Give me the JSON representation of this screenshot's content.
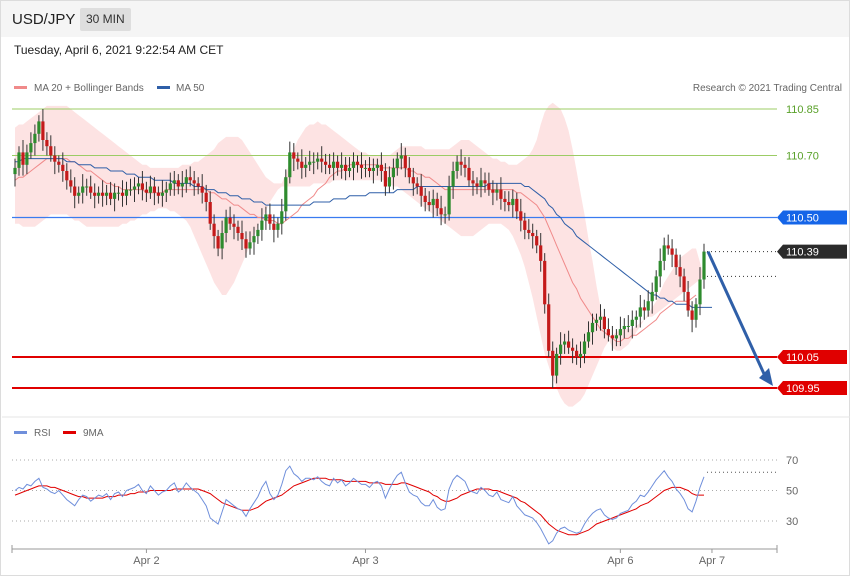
{
  "header": {
    "symbol": "USD/JPY",
    "timeframe": "30 MIN"
  },
  "datetime": "Tuesday, April 6, 2021 9:22:54 AM CET",
  "colors": {
    "ma20": "#f08a8a",
    "ma50": "#2f5fa8",
    "bands": "#fde0e0",
    "candle_up": "#2e8b2e",
    "candle_down": "#c41a1a",
    "support": "#e00000",
    "resistance_minor": "#9ccc65",
    "pivot": "#3a7bf0",
    "arrow": "#2f5fa8",
    "rsi": "#6f8fdb",
    "rsi_ma": "#e00000"
  },
  "legend": {
    "ma20": "MA 20 + Bollinger Bands",
    "ma50": "MA 50",
    "credit": "Research © 2021 Trading Central"
  },
  "levels": [
    {
      "value": 110.85,
      "label": "110.85",
      "kind": "resistance-minor"
    },
    {
      "value": 110.7,
      "label": "110.70",
      "kind": "resistance-minor"
    },
    {
      "value": 110.5,
      "label": "110.50",
      "kind": "pivot"
    },
    {
      "value": 110.39,
      "label": "110.39",
      "kind": "last"
    },
    {
      "value": 110.05,
      "label": "110.05",
      "kind": "support"
    },
    {
      "value": 109.95,
      "label": "109.95",
      "kind": "support"
    }
  ],
  "rsi_legend": {
    "rsi": "RSI",
    "ma": "9MA"
  },
  "rsi_levels": [
    {
      "value": 70,
      "label": "70"
    },
    {
      "value": 50,
      "label": "50"
    },
    {
      "value": 30,
      "label": "30"
    }
  ],
  "x_labels": [
    {
      "label": "Apr 2",
      "bar": 33
    },
    {
      "label": "Apr 3",
      "bar": 88
    },
    {
      "label": "Apr 6",
      "bar": 152
    },
    {
      "label": "Apr 7",
      "bar": 175
    }
  ],
  "chart_data": {
    "type": "candlestick",
    "ylim": [
      109.87,
      110.88
    ],
    "rsi_ylim": [
      10,
      80
    ],
    "close": [
      110.66,
      110.71,
      110.67,
      110.71,
      110.74,
      110.77,
      110.81,
      110.75,
      110.73,
      110.7,
      110.68,
      110.67,
      110.65,
      110.62,
      110.6,
      110.57,
      110.58,
      110.6,
      110.6,
      110.58,
      110.57,
      110.58,
      110.57,
      110.58,
      110.56,
      110.58,
      110.58,
      110.57,
      110.59,
      110.59,
      110.6,
      110.61,
      110.59,
      110.58,
      110.6,
      110.58,
      110.57,
      110.58,
      110.59,
      110.61,
      110.62,
      110.6,
      110.61,
      110.63,
      110.62,
      110.61,
      110.6,
      110.58,
      110.55,
      110.48,
      110.44,
      110.4,
      110.45,
      110.5,
      110.48,
      110.47,
      110.45,
      110.43,
      110.4,
      110.42,
      110.44,
      110.46,
      110.49,
      110.51,
      110.48,
      110.46,
      110.48,
      110.52,
      110.63,
      110.71,
      110.69,
      110.68,
      110.66,
      110.67,
      110.68,
      110.68,
      110.69,
      110.68,
      110.67,
      110.66,
      110.68,
      110.66,
      110.67,
      110.65,
      110.66,
      110.68,
      110.67,
      110.66,
      110.66,
      110.65,
      110.66,
      110.67,
      110.65,
      110.6,
      110.63,
      110.66,
      110.69,
      110.7,
      110.66,
      110.63,
      110.61,
      110.6,
      110.57,
      110.55,
      110.54,
      110.56,
      110.53,
      110.51,
      110.51,
      110.6,
      110.65,
      110.68,
      110.67,
      110.66,
      110.62,
      110.61,
      110.6,
      110.62,
      110.61,
      110.59,
      110.58,
      110.59,
      110.56,
      110.55,
      110.54,
      110.56,
      110.52,
      110.49,
      110.46,
      110.45,
      110.44,
      110.41,
      110.36,
      110.22,
      110.07,
      109.99,
      110.06,
      110.09,
      110.1,
      110.08,
      110.07,
      110.05,
      110.06,
      110.1,
      110.13,
      110.16,
      110.17,
      110.18,
      110.14,
      110.12,
      110.11,
      110.12,
      110.14,
      110.15,
      110.15,
      110.17,
      110.18,
      110.21,
      110.2,
      110.23,
      110.26,
      110.31,
      110.36,
      110.41,
      110.4,
      110.38,
      110.34,
      110.31,
      110.26,
      110.2,
      110.17,
      110.22,
      110.3,
      110.39
    ],
    "ma20": [
      110.62,
      110.63,
      110.63,
      110.64,
      110.65,
      110.66,
      110.67,
      110.68,
      110.69,
      110.69,
      110.69,
      110.69,
      110.69,
      110.69,
      110.68,
      110.68,
      110.67,
      110.66,
      110.65,
      110.65,
      110.64,
      110.63,
      110.62,
      110.61,
      110.61,
      110.6,
      110.6,
      110.59,
      110.59,
      110.59,
      110.59,
      110.59,
      110.59,
      110.58,
      110.58,
      110.58,
      110.58,
      110.58,
      110.59,
      110.59,
      110.59,
      110.59,
      110.59,
      110.59,
      110.59,
      110.59,
      110.59,
      110.59,
      110.59,
      110.58,
      110.58,
      110.57,
      110.56,
      110.56,
      110.55,
      110.54,
      110.54,
      110.53,
      110.52,
      110.51,
      110.51,
      110.5,
      110.5,
      110.49,
      110.49,
      110.49,
      110.48,
      110.48,
      110.49,
      110.5,
      110.51,
      110.52,
      110.54,
      110.55,
      110.56,
      110.57,
      110.59,
      110.6,
      110.61,
      110.63,
      110.64,
      110.65,
      110.65,
      110.66,
      110.67,
      110.67,
      110.67,
      110.67,
      110.67,
      110.67,
      110.67,
      110.67,
      110.66,
      110.66,
      110.66,
      110.66,
      110.66,
      110.66,
      110.66,
      110.65,
      110.65,
      110.64,
      110.64,
      110.63,
      110.63,
      110.62,
      110.61,
      110.6,
      110.59,
      110.59,
      110.59,
      110.59,
      110.59,
      110.59,
      110.59,
      110.59,
      110.59,
      110.59,
      110.59,
      110.59,
      110.59,
      110.59,
      110.59,
      110.59,
      110.59,
      110.59,
      110.58,
      110.58,
      110.57,
      110.56,
      110.55,
      110.54,
      110.52,
      110.5,
      110.47,
      110.44,
      110.41,
      110.38,
      110.35,
      110.32,
      110.29,
      110.27,
      110.24,
      110.22,
      110.2,
      110.18,
      110.16,
      110.14,
      110.13,
      110.12,
      110.11,
      110.1,
      110.1,
      110.11,
      110.11,
      110.12,
      110.12,
      110.13,
      110.14,
      110.15,
      110.16,
      110.17,
      110.19,
      110.2,
      110.21,
      110.22,
      110.23,
      110.23,
      110.23,
      110.23,
      110.24,
      110.25
    ],
    "ma50": [
      110.68,
      110.68,
      110.69,
      110.69,
      110.69,
      110.69,
      110.69,
      110.69,
      110.69,
      110.69,
      110.69,
      110.69,
      110.69,
      110.68,
      110.68,
      110.68,
      110.67,
      110.67,
      110.67,
      110.67,
      110.66,
      110.66,
      110.66,
      110.66,
      110.65,
      110.65,
      110.65,
      110.65,
      110.64,
      110.64,
      110.64,
      110.63,
      110.63,
      110.63,
      110.63,
      110.62,
      110.62,
      110.62,
      110.62,
      110.62,
      110.61,
      110.61,
      110.61,
      110.61,
      110.61,
      110.6,
      110.6,
      110.6,
      110.59,
      110.59,
      110.59,
      110.58,
      110.58,
      110.58,
      110.57,
      110.57,
      110.57,
      110.56,
      110.56,
      110.56,
      110.55,
      110.55,
      110.55,
      110.54,
      110.54,
      110.54,
      110.54,
      110.54,
      110.54,
      110.54,
      110.54,
      110.54,
      110.54,
      110.54,
      110.54,
      110.55,
      110.55,
      110.55,
      110.55,
      110.55,
      110.56,
      110.56,
      110.56,
      110.56,
      110.57,
      110.57,
      110.57,
      110.57,
      110.57,
      110.58,
      110.58,
      110.58,
      110.58,
      110.58,
      110.58,
      110.58,
      110.59,
      110.59,
      110.59,
      110.59,
      110.59,
      110.6,
      110.6,
      110.6,
      110.6,
      110.6,
      110.6,
      110.6,
      110.6,
      110.6,
      110.6,
      110.6,
      110.6,
      110.6,
      110.6,
      110.6,
      110.6,
      110.6,
      110.6,
      110.61,
      110.61,
      110.61,
      110.61,
      110.61,
      110.61,
      110.61,
      110.61,
      110.61,
      110.6,
      110.6,
      110.59,
      110.58,
      110.57,
      110.56,
      110.54,
      110.53,
      110.51,
      110.5,
      110.48,
      110.47,
      110.46,
      110.44,
      110.43,
      110.42,
      110.41,
      110.4,
      110.39,
      110.38,
      110.37,
      110.36,
      110.35,
      110.34,
      110.33,
      110.32,
      110.31,
      110.3,
      110.29,
      110.28,
      110.27,
      110.26,
      110.25,
      110.25,
      110.24,
      110.24,
      110.23,
      110.23,
      110.22,
      110.22,
      110.22,
      110.22,
      110.21,
      110.21,
      110.21,
      110.21,
      110.21,
      110.21
    ],
    "bb_upper": [
      110.79,
      110.8,
      110.8,
      110.81,
      110.82,
      110.83,
      110.84,
      110.85,
      110.86,
      110.86,
      110.86,
      110.86,
      110.86,
      110.86,
      110.85,
      110.84,
      110.83,
      110.82,
      110.81,
      110.8,
      110.79,
      110.78,
      110.77,
      110.76,
      110.75,
      110.74,
      110.73,
      110.72,
      110.71,
      110.7,
      110.69,
      110.68,
      110.67,
      110.67,
      110.66,
      110.66,
      110.66,
      110.66,
      110.66,
      110.66,
      110.66,
      110.66,
      110.67,
      110.67,
      110.67,
      110.68,
      110.68,
      110.69,
      110.7,
      110.71,
      110.72,
      110.74,
      110.75,
      110.76,
      110.76,
      110.76,
      110.76,
      110.75,
      110.73,
      110.71,
      110.69,
      110.67,
      110.65,
      110.63,
      110.62,
      110.61,
      110.61,
      110.61,
      110.64,
      110.68,
      110.72,
      110.75,
      110.77,
      110.79,
      110.8,
      110.8,
      110.81,
      110.8,
      110.8,
      110.79,
      110.78,
      110.77,
      110.76,
      110.75,
      110.74,
      110.73,
      110.72,
      110.71,
      110.71,
      110.7,
      110.7,
      110.7,
      110.7,
      110.7,
      110.7,
      110.71,
      110.72,
      110.73,
      110.73,
      110.73,
      110.73,
      110.73,
      110.73,
      110.72,
      110.72,
      110.72,
      110.72,
      110.72,
      110.72,
      110.72,
      110.73,
      110.74,
      110.75,
      110.75,
      110.75,
      110.74,
      110.73,
      110.72,
      110.71,
      110.7,
      110.69,
      110.69,
      110.68,
      110.68,
      110.67,
      110.67,
      110.67,
      110.68,
      110.69,
      110.7,
      110.72,
      110.75,
      110.8,
      110.84,
      110.86,
      110.87,
      110.86,
      110.85,
      110.82,
      110.78,
      110.72,
      110.65,
      110.58,
      110.51,
      110.43,
      110.36,
      110.28,
      110.21,
      110.16,
      110.11,
      110.08,
      110.07,
      110.07,
      110.08,
      110.09,
      110.11,
      110.13,
      110.15,
      110.17,
      110.19,
      110.21,
      110.23,
      110.26,
      110.29,
      110.31,
      110.33,
      110.35,
      110.37,
      110.38,
      110.39,
      110.4,
      110.4
    ],
    "bb_lower": [
      110.48,
      110.48,
      110.47,
      110.47,
      110.47,
      110.47,
      110.48,
      110.49,
      110.5,
      110.51,
      110.51,
      110.51,
      110.51,
      110.51,
      110.5,
      110.49,
      110.49,
      110.48,
      110.47,
      110.47,
      110.47,
      110.47,
      110.47,
      110.47,
      110.47,
      110.47,
      110.47,
      110.48,
      110.48,
      110.49,
      110.49,
      110.5,
      110.51,
      110.51,
      110.52,
      110.52,
      110.53,
      110.53,
      110.53,
      110.52,
      110.52,
      110.51,
      110.5,
      110.49,
      110.47,
      110.44,
      110.41,
      110.38,
      110.35,
      110.32,
      110.29,
      110.27,
      110.25,
      110.25,
      110.27,
      110.29,
      110.32,
      110.35,
      110.38,
      110.41,
      110.44,
      110.47,
      110.5,
      110.52,
      110.55,
      110.57,
      110.59,
      110.6,
      110.6,
      110.6,
      110.6,
      110.6,
      110.6,
      110.6,
      110.6,
      110.61,
      110.61,
      110.61,
      110.61,
      110.61,
      110.62,
      110.62,
      110.62,
      110.62,
      110.62,
      110.62,
      110.62,
      110.62,
      110.62,
      110.62,
      110.62,
      110.62,
      110.62,
      110.62,
      110.61,
      110.6,
      110.6,
      110.59,
      110.58,
      110.57,
      110.56,
      110.55,
      110.54,
      110.53,
      110.52,
      110.51,
      110.5,
      110.49,
      110.48,
      110.47,
      110.46,
      110.45,
      110.44,
      110.44,
      110.44,
      110.44,
      110.45,
      110.46,
      110.47,
      110.48,
      110.48,
      110.48,
      110.48,
      110.47,
      110.46,
      110.44,
      110.41,
      110.38,
      110.34,
      110.29,
      110.24,
      110.18,
      110.12,
      110.06,
      110.02,
      109.98,
      109.95,
      109.92,
      109.9,
      109.89,
      109.89,
      109.9,
      109.91,
      109.93,
      109.96,
      109.99,
      110.02,
      110.05,
      110.08,
      110.1,
      110.12,
      110.13,
      110.14,
      110.14,
      110.14,
      110.14,
      110.15,
      110.16,
      110.17,
      110.18,
      110.18,
      110.19,
      110.2,
      110.21,
      110.22,
      110.23,
      110.24,
      110.25,
      110.26,
      110.27,
      110.28,
      110.29,
      110.3,
      110.31
    ],
    "rsi": [
      50,
      52,
      51,
      54,
      53,
      56,
      58,
      52,
      51,
      49,
      48,
      50,
      47,
      44,
      42,
      40,
      44,
      47,
      46,
      43,
      45,
      47,
      46,
      48,
      44,
      48,
      49,
      46,
      50,
      51,
      52,
      54,
      50,
      48,
      53,
      50,
      47,
      49,
      50,
      53,
      55,
      49,
      51,
      55,
      52,
      50,
      48,
      44,
      40,
      32,
      30,
      28,
      36,
      44,
      42,
      40,
      38,
      37,
      33,
      38,
      42,
      46,
      52,
      56,
      48,
      44,
      47,
      54,
      63,
      66,
      61,
      59,
      56,
      58,
      58,
      57,
      59,
      56,
      54,
      53,
      58,
      55,
      57,
      53,
      55,
      58,
      56,
      54,
      54,
      52,
      55,
      56,
      53,
      45,
      51,
      56,
      60,
      62,
      55,
      49,
      47,
      46,
      42,
      40,
      40,
      44,
      39,
      37,
      38,
      51,
      57,
      60,
      58,
      56,
      50,
      49,
      48,
      52,
      50,
      47,
      46,
      49,
      44,
      43,
      42,
      46,
      40,
      37,
      34,
      33,
      32,
      29,
      25,
      20,
      15,
      17,
      22,
      25,
      26,
      24,
      23,
      22,
      23,
      28,
      32,
      35,
      37,
      38,
      34,
      32,
      31,
      32,
      35,
      36,
      37,
      41,
      43,
      47,
      46,
      49,
      53,
      57,
      60,
      63,
      59,
      56,
      51,
      48,
      44,
      38,
      36,
      43,
      52,
      59
    ],
    "rsi_ma": [
      47,
      48,
      49,
      50,
      51,
      52,
      53,
      53,
      53,
      52,
      52,
      51,
      50,
      49,
      48,
      47,
      46,
      46,
      45,
      45,
      45,
      45,
      45,
      46,
      46,
      46,
      47,
      47,
      47,
      48,
      48,
      49,
      49,
      49,
      50,
      50,
      50,
      50,
      50,
      50,
      51,
      51,
      51,
      51,
      51,
      51,
      51,
      50,
      49,
      48,
      46,
      44,
      42,
      41,
      40,
      39,
      38,
      37,
      37,
      37,
      38,
      39,
      41,
      43,
      44,
      45,
      46,
      47,
      49,
      51,
      53,
      54,
      55,
      56,
      57,
      58,
      58,
      58,
      58,
      57,
      57,
      57,
      57,
      56,
      56,
      56,
      56,
      56,
      56,
      55,
      55,
      55,
      55,
      54,
      54,
      54,
      54,
      55,
      55,
      54,
      53,
      52,
      51,
      50,
      49,
      47,
      46,
      44,
      43,
      43,
      44,
      45,
      47,
      48,
      49,
      50,
      51,
      51,
      51,
      51,
      50,
      50,
      49,
      48,
      47,
      46,
      45,
      43,
      42,
      40,
      38,
      36,
      34,
      31,
      28,
      26,
      24,
      23,
      22,
      21,
      21,
      21,
      22,
      23,
      24,
      26,
      28,
      29,
      30,
      31,
      32,
      33,
      34,
      35,
      36,
      37,
      38,
      40,
      41,
      42,
      44,
      46,
      48,
      50,
      51,
      52,
      52,
      52,
      51,
      50,
      48,
      47,
      47,
      47
    ]
  }
}
